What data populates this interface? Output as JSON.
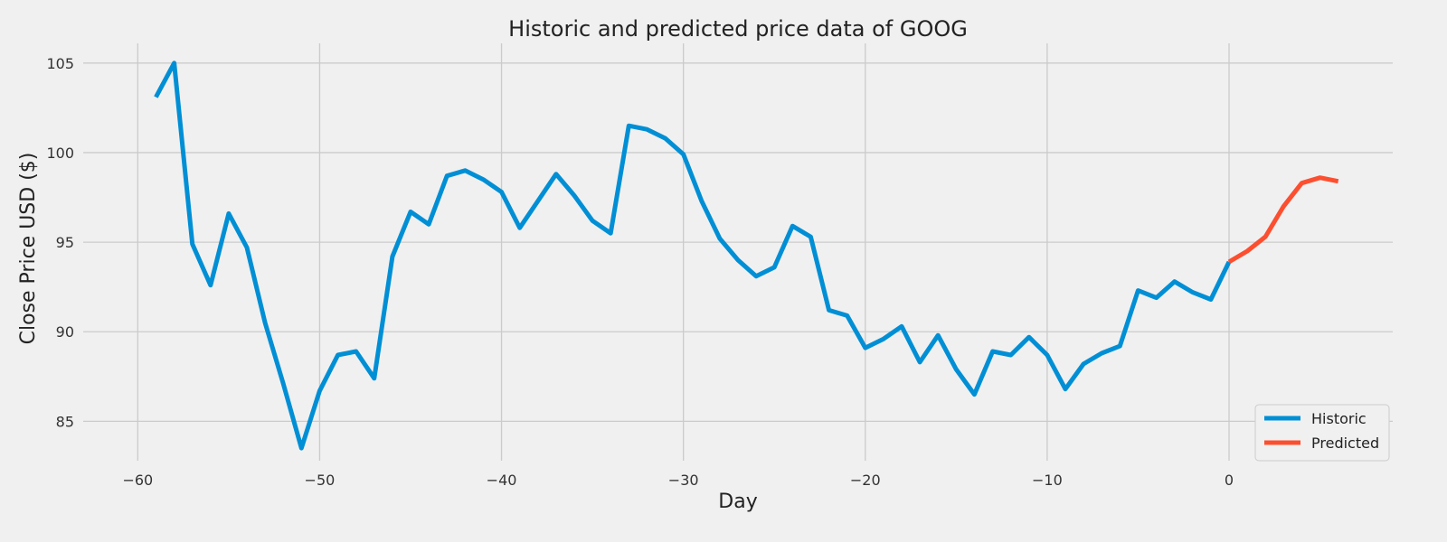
{
  "chart_data": {
    "type": "line",
    "title": "Historic and predicted price data of GOOG",
    "xlabel": "Day",
    "ylabel": "Close Price USD ($)",
    "xlim": [
      -63,
      9
    ],
    "ylim": [
      82.8,
      106.1
    ],
    "xticks": [
      -60,
      -50,
      -40,
      -30,
      -20,
      -10,
      0
    ],
    "xtick_labels": [
      "−60",
      "−50",
      "−40",
      "−30",
      "−20",
      "−10",
      "0"
    ],
    "yticks": [
      85,
      90,
      95,
      100,
      105
    ],
    "ytick_labels": [
      "85",
      "90",
      "95",
      "100",
      "105"
    ],
    "grid": true,
    "legend_position": "lower-right",
    "series": [
      {
        "name": "Historic",
        "color": "#008fd5",
        "x": [
          -59,
          -58,
          -57,
          -56,
          -55,
          -54,
          -53,
          -52,
          -51,
          -50,
          -49,
          -48,
          -47,
          -46,
          -45,
          -44,
          -43,
          -42,
          -41,
          -40,
          -39,
          -38,
          -37,
          -36,
          -35,
          -34,
          -33,
          -32,
          -31,
          -30,
          -29,
          -28,
          -27,
          -26,
          -25,
          -24,
          -23,
          -22,
          -21,
          -20,
          -19,
          -18,
          -17,
          -16,
          -15,
          -14,
          -13,
          -12,
          -11,
          -10,
          -9,
          -8,
          -7,
          -6,
          -5,
          -4,
          -3,
          -2,
          -1,
          0
        ],
        "y": [
          103.1,
          105.0,
          94.9,
          92.6,
          96.6,
          94.7,
          90.5,
          87.1,
          83.5,
          86.7,
          88.7,
          88.9,
          87.4,
          94.2,
          96.7,
          96.0,
          98.7,
          99.0,
          98.5,
          97.8,
          95.8,
          97.3,
          98.8,
          97.6,
          96.2,
          95.5,
          101.5,
          101.3,
          100.8,
          99.9,
          97.3,
          95.2,
          94.0,
          93.1,
          93.6,
          95.9,
          95.3,
          91.2,
          90.9,
          89.1,
          89.6,
          90.3,
          88.3,
          89.8,
          87.9,
          86.5,
          88.9,
          88.7,
          89.7,
          88.7,
          86.8,
          88.2,
          88.8,
          89.2,
          92.3,
          91.9,
          92.8,
          92.2,
          91.8,
          93.9
        ]
      },
      {
        "name": "Predicted",
        "color": "#fc4f30",
        "x": [
          0,
          1,
          2,
          3,
          4,
          5,
          6
        ],
        "y": [
          93.9,
          94.5,
          95.3,
          97.0,
          98.3,
          98.6,
          98.4
        ]
      }
    ]
  }
}
